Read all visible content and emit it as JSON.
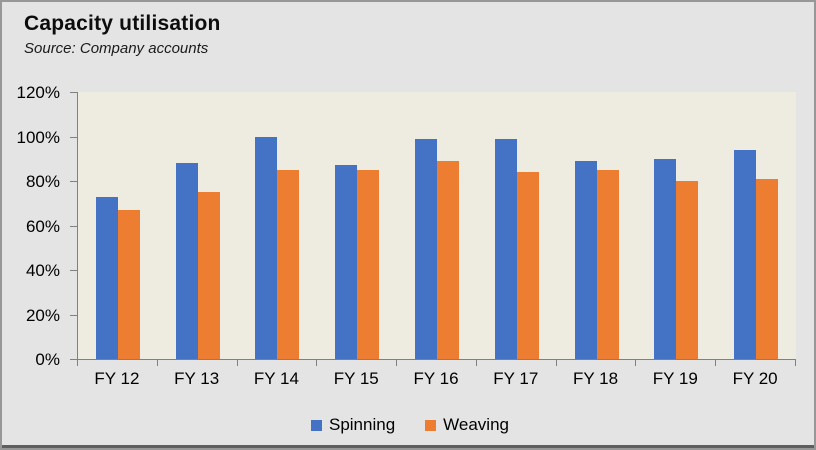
{
  "header": {
    "title": "Capacity utilisation",
    "source": "Source: Company accounts"
  },
  "chart_data": {
    "type": "bar",
    "title": "Capacity utilisation",
    "categories": [
      "FY 12",
      "FY 13",
      "FY 14",
      "FY 15",
      "FY 16",
      "FY 17",
      "FY 18",
      "FY 19",
      "FY 20"
    ],
    "series": [
      {
        "name": "Spinning",
        "color": "#4472C4",
        "values": [
          73,
          88,
          100,
          87,
          99,
          99,
          89,
          90,
          94
        ]
      },
      {
        "name": "Weaving",
        "color": "#ED7D31",
        "values": [
          67,
          75,
          85,
          85,
          89,
          84,
          85,
          80,
          81
        ]
      }
    ],
    "xlabel": "",
    "ylabel": "",
    "ylim": [
      0,
      120
    ],
    "ytick_step": 20,
    "ytick_labels": [
      "0%",
      "20%",
      "40%",
      "60%",
      "80%",
      "100%",
      "120%"
    ],
    "grid": false,
    "legend_position": "bottom",
    "plot_background": "#EEEBE0",
    "outer_background": "#E4E4E4",
    "axis_color": "#808080"
  }
}
